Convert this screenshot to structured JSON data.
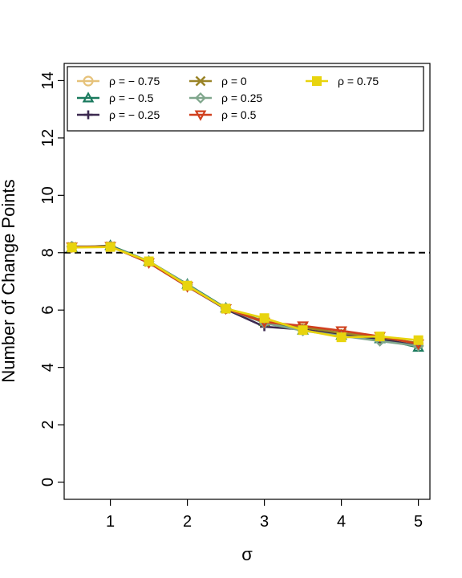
{
  "chart_data": {
    "type": "line",
    "title": "",
    "xlabel": "σ",
    "ylabel": "Number of Change Points",
    "x": [
      0.5,
      1,
      1.5,
      2,
      2.5,
      3,
      3.5,
      4,
      4.5,
      5
    ],
    "xlim": [
      0.4,
      5.15
    ],
    "ylim": [
      -0.6,
      14.6
    ],
    "xticks": [
      1,
      2,
      3,
      4,
      5
    ],
    "yticks": [
      0,
      2,
      4,
      6,
      8,
      10,
      12,
      14
    ],
    "reference_line": {
      "y": 8,
      "style": "dashed"
    },
    "grid": false,
    "legend": {
      "placement": "top",
      "columns": 3
    },
    "series": [
      {
        "name": "ρ = − 0.75",
        "color": "#E6C27A",
        "marker": "circle",
        "values": [
          8.2,
          8.22,
          7.68,
          6.85,
          6.05,
          5.62,
          5.35,
          5.15,
          5.0,
          4.82
        ]
      },
      {
        "name": "ρ = − 0.5",
        "color": "#1A7A5E",
        "marker": "triangle-up",
        "values": [
          8.18,
          8.25,
          7.7,
          6.9,
          6.07,
          5.6,
          5.3,
          5.12,
          5.0,
          4.7
        ]
      },
      {
        "name": "ρ = − 0.25",
        "color": "#3C2A50",
        "marker": "plus",
        "values": [
          8.2,
          8.22,
          7.65,
          6.82,
          6.03,
          5.42,
          5.32,
          5.15,
          5.0,
          4.75
        ]
      },
      {
        "name": "ρ = 0",
        "color": "#9A8428",
        "marker": "cross",
        "values": [
          8.2,
          8.22,
          7.68,
          6.85,
          6.05,
          5.6,
          5.4,
          5.2,
          5.05,
          4.85
        ]
      },
      {
        "name": "ρ = 0.25",
        "color": "#7FA68C",
        "marker": "diamond",
        "values": [
          8.22,
          8.22,
          7.7,
          6.88,
          6.05,
          5.55,
          5.28,
          5.1,
          4.92,
          4.75
        ]
      },
      {
        "name": "ρ = 0.5",
        "color": "#D0401E",
        "marker": "triangle-down",
        "values": [
          8.2,
          8.22,
          7.65,
          6.82,
          6.05,
          5.58,
          5.45,
          5.28,
          5.08,
          4.82
        ]
      },
      {
        "name": "ρ = 0.75",
        "color": "#E8D40E",
        "marker": "square",
        "values": [
          8.18,
          8.2,
          7.7,
          6.85,
          6.05,
          5.72,
          5.3,
          5.05,
          5.08,
          4.95
        ]
      }
    ]
  }
}
